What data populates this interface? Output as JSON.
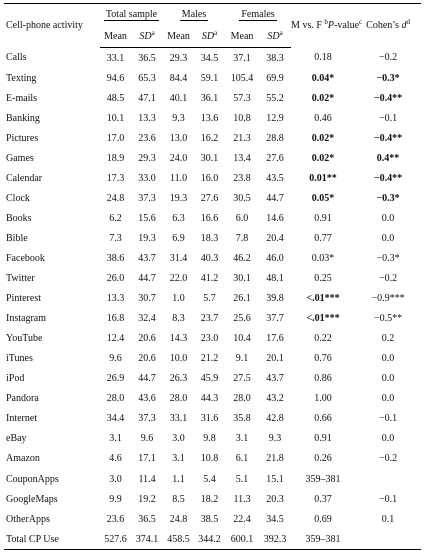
{
  "headers": {
    "activity": "Cell-phone activity",
    "total_sample": "Total sample",
    "males": "Males",
    "females": "Females",
    "mvf_a": "M vs. F",
    "mvf_sup": "b",
    "mvf_b": "P",
    "mvf_c": "-value",
    "mvf_sup2": "c",
    "cohen_a": "Cohen’s ",
    "cohen_d": "d",
    "cohen_sup": "d",
    "mean": "Mean",
    "sd": "SD",
    "sd_sup": "a"
  },
  "rows": [
    {
      "label": "Calls",
      "t_mean": "33.1",
      "t_sd": "36.5",
      "m_mean": "29.3",
      "m_sd": "34.5",
      "f_mean": "37.1",
      "f_sd": "38.3",
      "p": "0.18",
      "d": "−0.2",
      "pb": false,
      "db": false
    },
    {
      "label": "Texting",
      "t_mean": "94.6",
      "t_sd": "65.3",
      "m_mean": "84.4",
      "m_sd": "59.1",
      "f_mean": "105.4",
      "f_sd": "69.9",
      "p": "0.04*",
      "d": "−0.3*",
      "pb": true,
      "db": true
    },
    {
      "label": "E-mails",
      "t_mean": "48.5",
      "t_sd": "47.1",
      "m_mean": "40.1",
      "m_sd": "36.1",
      "f_mean": "57.3",
      "f_sd": "55.2",
      "p": "0.02*",
      "d": "−0.4**",
      "pb": true,
      "db": true
    },
    {
      "label": "Banking",
      "t_mean": "10.1",
      "t_sd": "13.3",
      "m_mean": "9.3",
      "m_sd": "13.6",
      "f_mean": "10.8",
      "f_sd": "12.9",
      "p": "0.46",
      "d": "−0.1",
      "pb": false,
      "db": false
    },
    {
      "label": "Pictures",
      "t_mean": "17.0",
      "t_sd": "23.6",
      "m_mean": "13.0",
      "m_sd": "16.2",
      "f_mean": "21.3",
      "f_sd": "28.8",
      "p": "0.02*",
      "d": "−0.4**",
      "pb": true,
      "db": true
    },
    {
      "label": "Games",
      "t_mean": "18.9",
      "t_sd": "29.3",
      "m_mean": "24.0",
      "m_sd": "30.1",
      "f_mean": "13.4",
      "f_sd": "27.6",
      "p": "0.02*",
      "d": "0.4**",
      "pb": true,
      "db": true
    },
    {
      "label": "Calendar",
      "t_mean": "17.3",
      "t_sd": "33.0",
      "m_mean": "11.0",
      "m_sd": "16.0",
      "f_mean": "23.8",
      "f_sd": "43.5",
      "p": "0.01**",
      "d": "−0.4**",
      "pb": true,
      "db": true
    },
    {
      "label": "Clock",
      "t_mean": "24.8",
      "t_sd": "37.3",
      "m_mean": "19.3",
      "m_sd": "27.6",
      "f_mean": "30.5",
      "f_sd": "44.7",
      "p": "0.05*",
      "d": "−0.3*",
      "pb": true,
      "db": true
    },
    {
      "label": "Books",
      "t_mean": "6.2",
      "t_sd": "15.6",
      "m_mean": "6.3",
      "m_sd": "16.6",
      "f_mean": "6.0",
      "f_sd": "14.6",
      "p": "0.91",
      "d": "0.0",
      "pb": false,
      "db": false
    },
    {
      "label": "Bible",
      "t_mean": "7.3",
      "t_sd": "19.3",
      "m_mean": "6.9",
      "m_sd": "18.3",
      "f_mean": "7.8",
      "f_sd": "20.4",
      "p": "0.77",
      "d": "0.0",
      "pb": false,
      "db": false
    },
    {
      "label": "Facebook",
      "t_mean": "38.6",
      "t_sd": "43.7",
      "m_mean": "31.4",
      "m_sd": "40.3",
      "f_mean": "46.2",
      "f_sd": "46.0",
      "p": "0.03*",
      "d": "−0.3*",
      "pb": false,
      "db": false
    },
    {
      "label": "Twitter",
      "t_mean": "26.0",
      "t_sd": "44.7",
      "m_mean": "22.0",
      "m_sd": "41.2",
      "f_mean": "30.1",
      "f_sd": "48.1",
      "p": "0.25",
      "d": "−0.2",
      "pb": false,
      "db": false
    },
    {
      "label": "Pinterest",
      "t_mean": "13.3",
      "t_sd": "30.7",
      "m_mean": "1.0",
      "m_sd": "5.7",
      "f_mean": "26.1",
      "f_sd": "39.8",
      "p": "<.01***",
      "d": "−0.9***",
      "pb": true,
      "db": false
    },
    {
      "label": "Instagram",
      "t_mean": "16.8",
      "t_sd": "32.4",
      "m_mean": "8.3",
      "m_sd": "23.7",
      "f_mean": "25.6",
      "f_sd": "37.7",
      "p": "<.01***",
      "d": "−0.5**",
      "pb": true,
      "db": false
    },
    {
      "label": "YouTube",
      "t_mean": "12.4",
      "t_sd": "20.6",
      "m_mean": "14.3",
      "m_sd": "23.0",
      "f_mean": "10.4",
      "f_sd": "17.6",
      "p": "0.22",
      "d": "0.2",
      "pb": false,
      "db": false
    },
    {
      "label": "iTunes",
      "t_mean": "9.6",
      "t_sd": "20.6",
      "m_mean": "10.0",
      "m_sd": "21.2",
      "f_mean": "9.1",
      "f_sd": "20.1",
      "p": "0.76",
      "d": "0.0",
      "pb": false,
      "db": false
    },
    {
      "label": "iPod",
      "t_mean": "26.9",
      "t_sd": "44.7",
      "m_mean": "26.3",
      "m_sd": "45.9",
      "f_mean": "27.5",
      "f_sd": "43.7",
      "p": "0.86",
      "d": "0.0",
      "pb": false,
      "db": false
    },
    {
      "label": "Pandora",
      "t_mean": "28.0",
      "t_sd": "43.6",
      "m_mean": "28.0",
      "m_sd": "44.3",
      "f_mean": "28.0",
      "f_sd": "43.2",
      "p": "1.00",
      "d": "0.0",
      "pb": false,
      "db": false
    },
    {
      "label": "Internet",
      "t_mean": "34.4",
      "t_sd": "37.3",
      "m_mean": "33.1",
      "m_sd": "31.6",
      "f_mean": "35.8",
      "f_sd": "42.8",
      "p": "0.66",
      "d": "−0.1",
      "pb": false,
      "db": false
    },
    {
      "label": "eBay",
      "t_mean": "3.1",
      "t_sd": "9.6",
      "m_mean": "3.0",
      "m_sd": "9.8",
      "f_mean": "3.1",
      "f_sd": "9.3",
      "p": "0.91",
      "d": "0.0",
      "pb": false,
      "db": false
    },
    {
      "label": "Amazon",
      "t_mean": "4.6",
      "t_sd": "17.1",
      "m_mean": "3.1",
      "m_sd": "10.8",
      "f_mean": "6.1",
      "f_sd": "21.8",
      "p": "0.26",
      "d": "−0.2",
      "pb": false,
      "db": false
    },
    {
      "label": "CouponApps",
      "t_mean": "3.0",
      "t_sd": "11.4",
      "m_mean": "1.1",
      "m_sd": "5.4",
      "f_mean": "5.1",
      "f_sd": "15.1",
      "p": "359–381",
      "d": "",
      "pb": false,
      "db": false
    },
    {
      "label": "GoogleMaps",
      "t_mean": "9.9",
      "t_sd": "19.2",
      "m_mean": "8.5",
      "m_sd": "18.2",
      "f_mean": "11.3",
      "f_sd": "20.3",
      "p": "0.37",
      "d": "−0.1",
      "pb": false,
      "db": false
    },
    {
      "label": "OtherApps",
      "t_mean": "23.6",
      "t_sd": "36.5",
      "m_mean": "24.8",
      "m_sd": "38.5",
      "f_mean": "22.4",
      "f_sd": "34.5",
      "p": "0.69",
      "d": "0.1",
      "pb": false,
      "db": false
    },
    {
      "label": "Total CP Use",
      "t_mean": "527.6",
      "t_sd": "374.1",
      "m_mean": "458.5",
      "m_sd": "344.2",
      "f_mean": "600.1",
      "f_sd": "392.3",
      "p": "359–381",
      "d": "",
      "pb": false,
      "db": false
    }
  ]
}
